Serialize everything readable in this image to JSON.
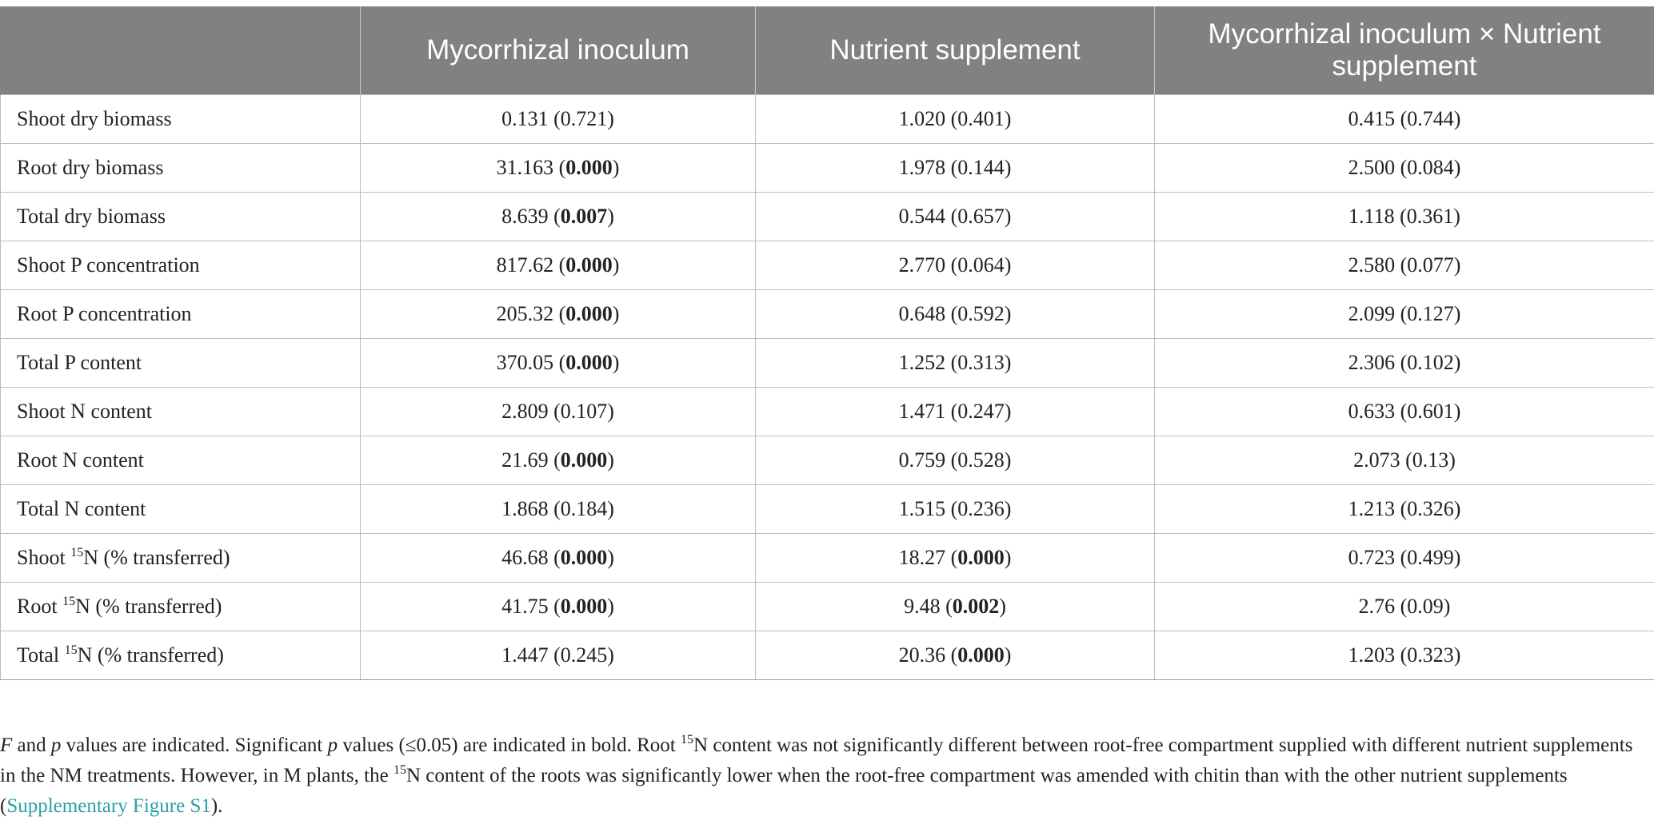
{
  "table": {
    "headers": [
      "",
      "Mycorrhizal inoculum",
      "Nutrient supplement",
      "Mycorrhizal inoculum × Nutrient supplement"
    ],
    "rows": [
      {
        "label": "Shoot dry biomass",
        "cells": [
          {
            "v": "0.131",
            "p": "0.721",
            "sig": false
          },
          {
            "v": "1.020",
            "p": "0.401",
            "sig": false
          },
          {
            "v": "0.415",
            "p": "0.744",
            "sig": false
          }
        ]
      },
      {
        "label": "Root dry biomass",
        "cells": [
          {
            "v": "31.163",
            "p": "0.000",
            "sig": true
          },
          {
            "v": "1.978",
            "p": "0.144",
            "sig": false
          },
          {
            "v": "2.500",
            "p": "0.084",
            "sig": false
          }
        ]
      },
      {
        "label": "Total dry biomass",
        "cells": [
          {
            "v": "8.639",
            "p": "0.007",
            "sig": true
          },
          {
            "v": "0.544",
            "p": "0.657",
            "sig": false
          },
          {
            "v": "1.118",
            "p": "0.361",
            "sig": false
          }
        ]
      },
      {
        "label": "Shoot P concentration",
        "cells": [
          {
            "v": "817.62",
            "p": "0.000",
            "sig": true
          },
          {
            "v": "2.770",
            "p": "0.064",
            "sig": false
          },
          {
            "v": "2.580",
            "p": "0.077",
            "sig": false
          }
        ]
      },
      {
        "label": "Root P concentration",
        "cells": [
          {
            "v": "205.32",
            "p": "0.000",
            "sig": true
          },
          {
            "v": "0.648",
            "p": "0.592",
            "sig": false
          },
          {
            "v": "2.099",
            "p": "0.127",
            "sig": false
          }
        ]
      },
      {
        "label": "Total P content",
        "cells": [
          {
            "v": "370.05",
            "p": "0.000",
            "sig": true
          },
          {
            "v": "1.252",
            "p": "0.313",
            "sig": false
          },
          {
            "v": "2.306",
            "p": "0.102",
            "sig": false
          }
        ]
      },
      {
        "label": "Shoot N content",
        "cells": [
          {
            "v": "2.809",
            "p": "0.107",
            "sig": false
          },
          {
            "v": "1.471",
            "p": "0.247",
            "sig": false
          },
          {
            "v": "0.633",
            "p": "0.601",
            "sig": false
          }
        ]
      },
      {
        "label": "Root N content",
        "cells": [
          {
            "v": "21.69",
            "p": "0.000",
            "sig": true
          },
          {
            "v": "0.759",
            "p": "0.528",
            "sig": false
          },
          {
            "v": "2.073",
            "p": "0.13",
            "sig": false
          }
        ]
      },
      {
        "label": "Total N content",
        "cells": [
          {
            "v": "1.868",
            "p": "0.184",
            "sig": false
          },
          {
            "v": "1.515",
            "p": "0.236",
            "sig": false
          },
          {
            "v": "1.213",
            "p": "0.326",
            "sig": false
          }
        ]
      },
      {
        "label_pre": "Shoot ",
        "label_sup": "15",
        "label_post": "N (% transferred)",
        "cells": [
          {
            "v": "46.68",
            "p": "0.000",
            "sig": true
          },
          {
            "v": "18.27",
            "p": "0.000",
            "sig": true
          },
          {
            "v": "0.723",
            "p": "0.499",
            "sig": false
          }
        ]
      },
      {
        "label_pre": "Root ",
        "label_sup": "15",
        "label_post": "N (% transferred)",
        "cells": [
          {
            "v": "41.75",
            "p": "0.000",
            "sig": true
          },
          {
            "v": "9.48",
            "p": "0.002",
            "sig": true
          },
          {
            "v": "2.76",
            "p": "0.09",
            "sig": false
          }
        ]
      },
      {
        "label_pre": "Total ",
        "label_sup": "15",
        "label_post": "N (% transferred)",
        "cells": [
          {
            "v": "1.447",
            "p": "0.245",
            "sig": false
          },
          {
            "v": "20.36",
            "p": "0.000",
            "sig": true
          },
          {
            "v": "1.203",
            "p": "0.323",
            "sig": false
          }
        ]
      }
    ]
  },
  "footnote": {
    "f": "F",
    "t1": " and ",
    "p1": "p",
    "t2": " values are indicated. Significant ",
    "p2": "p",
    "t3": " values (≤0.05) are indicated in bold. Root ",
    "sup1": "15",
    "t4": "N content was not significantly different between root-free compartment supplied with different nutrient supplements in the NM treatments. However, in M plants, the ",
    "sup2": "15",
    "t5": "N content of the roots was significantly lower when the root-free compartment was amended with chitin than with the other nutrient supplements (",
    "link": "Supplementary Figure S1",
    "t6": ")."
  },
  "colors": {
    "header_bg": "#808180",
    "header_text": "#ffffff",
    "grid": "#bdbdbd",
    "link": "#2aa0a8"
  }
}
